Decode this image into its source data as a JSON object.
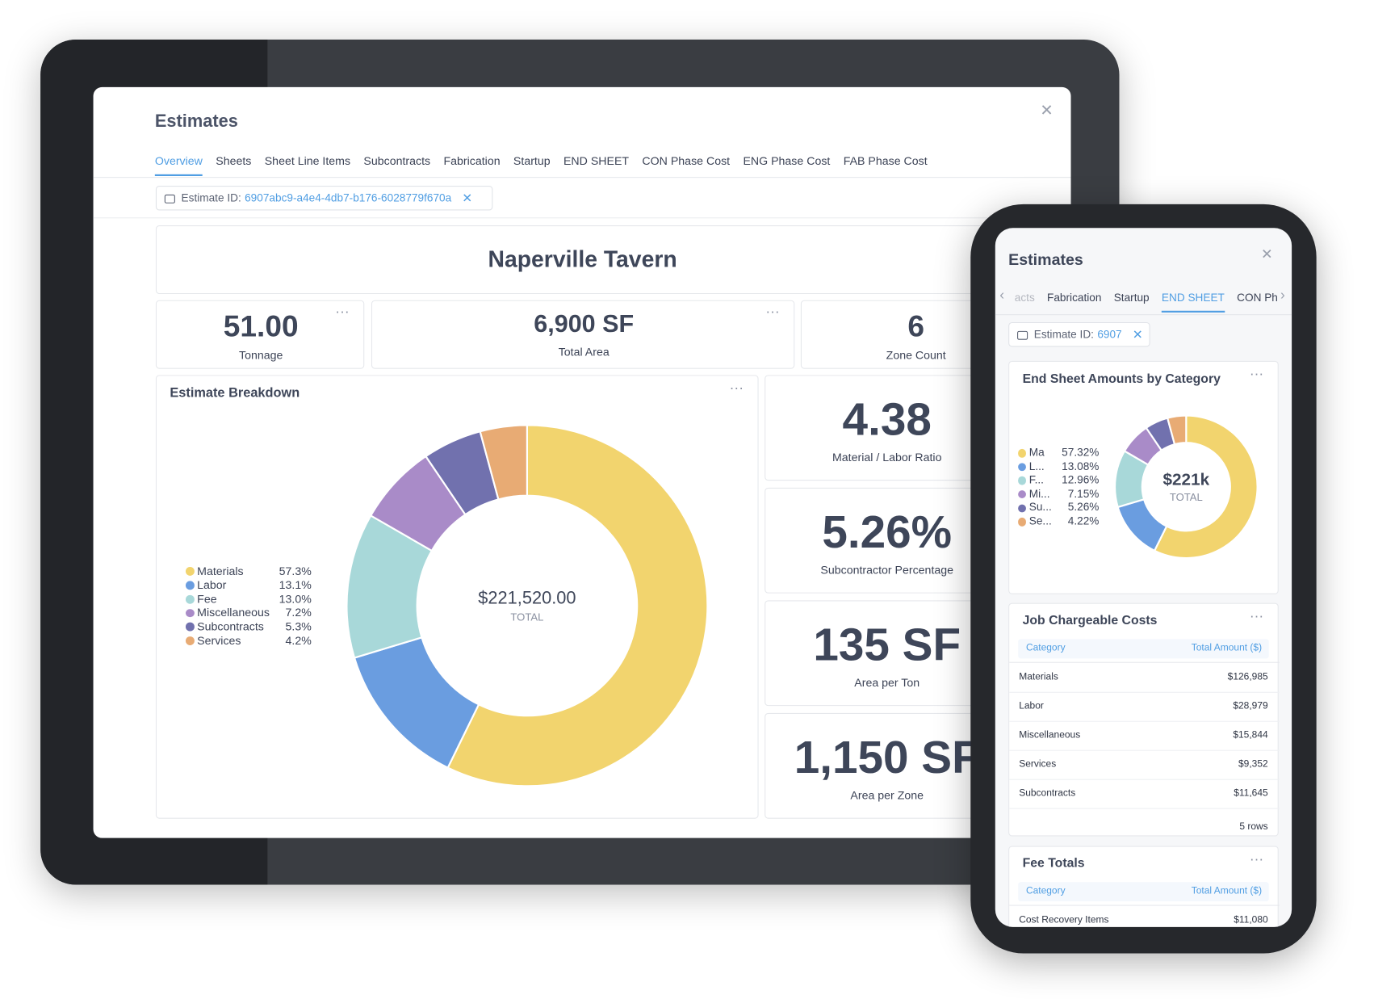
{
  "tablet": {
    "title": "Estimates",
    "tabs": [
      "Overview",
      "Sheets",
      "Sheet Line Items",
      "Subcontracts",
      "Fabrication",
      "Startup",
      "END SHEET",
      "CON Phase Cost",
      "ENG Phase Cost",
      "FAB Phase Cost"
    ],
    "active_tab": 0,
    "filter": {
      "label": "Estimate ID:",
      "value": "6907abc9-a4e4-4db7-b176-6028779f670a"
    },
    "project": "Naperville Tavern",
    "kpis": [
      {
        "value": "51.00",
        "label": "Tonnage"
      },
      {
        "value": "6,900 SF",
        "label": "Total Area"
      },
      {
        "value": "6",
        "label": "Zone Count"
      }
    ],
    "breakdown": {
      "type": "pie",
      "title": "Estimate Breakdown",
      "categories": [
        "Materials",
        "Labor",
        "Fee",
        "Miscellaneous",
        "Subcontracts",
        "Services"
      ],
      "values": [
        57.3,
        13.1,
        13.0,
        7.2,
        5.3,
        4.2
      ],
      "value_labels": [
        "57.3%",
        "13.1%",
        "13.0%",
        "7.2%",
        "5.3%",
        "4.2%"
      ],
      "colors": [
        "#f2d46e",
        "#6a9de0",
        "#a8d8d9",
        "#a98bc8",
        "#7171ae",
        "#e8ab74"
      ],
      "center_value": "$221,520.00",
      "center_label": "TOTAL"
    },
    "side_kpis": [
      {
        "value": "4.38",
        "label": "Material / Labor Ratio"
      },
      {
        "value": "5.26%",
        "label": "Subcontractor Percentage"
      },
      {
        "value": "135 SF",
        "label": "Area per Ton"
      },
      {
        "value": "1,150 SF",
        "label": "Area per Zone"
      }
    ]
  },
  "phone": {
    "title": "Estimates",
    "tabs": [
      "acts",
      "Fabrication",
      "Startup",
      "END SHEET",
      "CON Ph"
    ],
    "active_tab": 3,
    "filter": {
      "label": "Estimate ID:",
      "value": "6907"
    },
    "donut": {
      "type": "pie",
      "title": "End Sheet Amounts by Category",
      "categories": [
        "Ma",
        "L...",
        "F...",
        "Mi...",
        "Su...",
        "Se..."
      ],
      "values": [
        57.32,
        13.08,
        12.96,
        7.15,
        5.26,
        4.22
      ],
      "value_labels": [
        "57.32%",
        "13.08%",
        "12.96%",
        "7.15%",
        "5.26%",
        "4.22%"
      ],
      "colors": [
        "#f2d46e",
        "#6a9de0",
        "#a8d8d9",
        "#a98bc8",
        "#7171ae",
        "#e8ab74"
      ],
      "center_value": "$221k",
      "center_label": "TOTAL"
    },
    "job_table": {
      "title": "Job Chargeable Costs",
      "columns": [
        "Category",
        "Total Amount ($)"
      ],
      "rows": [
        [
          "Materials",
          "$126,985"
        ],
        [
          "Labor",
          "$28,979"
        ],
        [
          "Miscellaneous",
          "$15,844"
        ],
        [
          "Services",
          "$9,352"
        ],
        [
          "Subcontracts",
          "$11,645"
        ]
      ],
      "footer": "5 rows"
    },
    "fee_table": {
      "title": "Fee Totals",
      "columns": [
        "Category",
        "Total Amount ($)"
      ],
      "rows": [
        [
          "Cost Recovery Items",
          "$11,080"
        ]
      ]
    }
  }
}
